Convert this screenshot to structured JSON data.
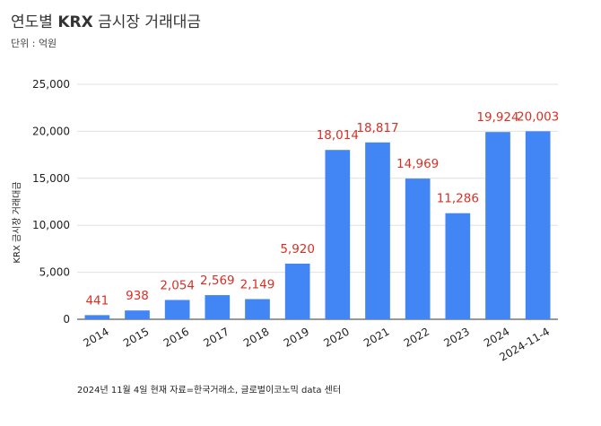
{
  "header": {
    "title_pre": "연도별 ",
    "title_krx": "KRX",
    "title_post": " 금시장 거래대금",
    "unit": "단위 : 억원"
  },
  "footer": {
    "note": "2024년 11월 4일 현재   자료=한국거래소, 글로벌이코노믹 data 센터"
  },
  "colors": {
    "bar": "#4285f4",
    "label": "#d93025",
    "grid": "#e0e0e0"
  },
  "chart_data": {
    "type": "bar",
    "categories": [
      "2014",
      "2015",
      "2016",
      "2017",
      "2018",
      "2019",
      "2020",
      "2021",
      "2022",
      "2023",
      "2024",
      "2024-11-4"
    ],
    "values": [
      441,
      938,
      2054,
      2569,
      2149,
      5920,
      18014,
      18817,
      14969,
      11286,
      19924,
      20003
    ],
    "value_labels": [
      "441",
      "938",
      "2,054",
      "2,569",
      "2,149",
      "5,920",
      "18,014",
      "18,817",
      "14,969",
      "11,286",
      "19,924",
      "20,003"
    ],
    "ylabel": "KRX 금시장 거래대금",
    "xlabel": "",
    "ylim": [
      0,
      25000
    ],
    "yticks": [
      0,
      5000,
      10000,
      15000,
      20000,
      25000
    ],
    "ytick_labels": [
      "0",
      "5,000",
      "10,000",
      "15,000",
      "20,000",
      "25,000"
    ],
    "grid": true,
    "legend": "none"
  }
}
